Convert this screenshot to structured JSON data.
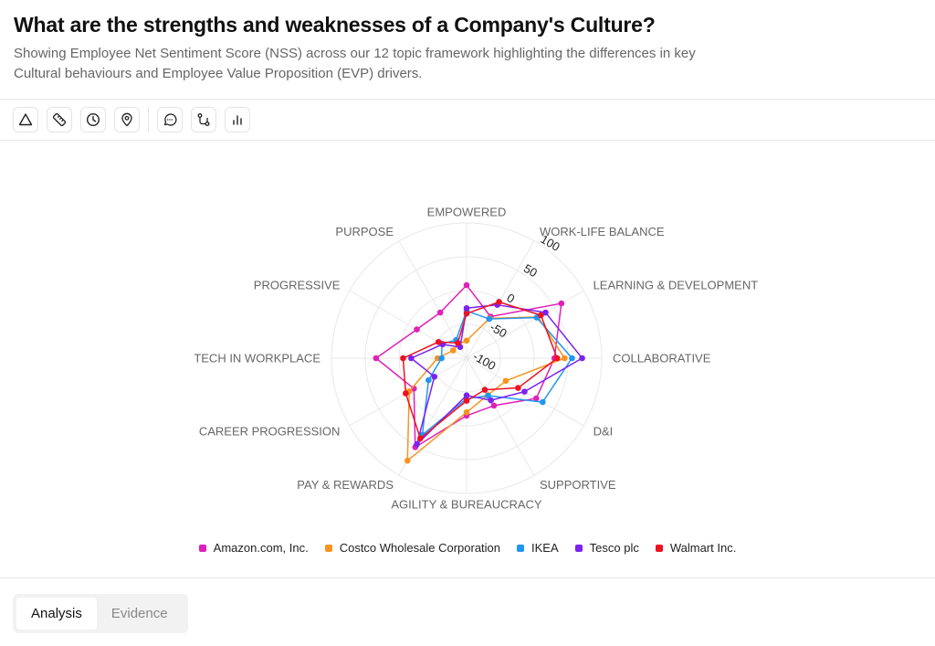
{
  "header": {
    "title": "What are the strengths and weaknesses of a Company's Culture?",
    "subtitle": "Showing Employee Net Sentiment Score (NSS) across our 12 topic framework highlighting the differences in key Cultural behaviours and Employee Value Proposition (EVP) drivers."
  },
  "toolbar": {
    "icons": [
      "triangle-icon",
      "ruler-icon",
      "clock-icon",
      "map-pin-icon",
      "message-icon",
      "git-pull-request-icon",
      "bar-chart-icon"
    ]
  },
  "chart_data": {
    "type": "radar",
    "categories": [
      "EMPOWERED",
      "WORK-LIFE BALANCE",
      "LEARNING & DEVELOPMENT",
      "COLLABORATIVE",
      "D&I",
      "SUPPORTIVE",
      "AGILITY & BUREAUCRACY",
      "PAY & REWARDS",
      "CAREER PROGRESSION",
      "TECH IN WORKPLACE",
      "PROGRESSIVE",
      "PURPOSE"
    ],
    "rlim": [
      -100,
      100
    ],
    "rticks": [
      "100",
      "50",
      "0",
      "-50",
      "-100"
    ],
    "grid": true,
    "legend": "bottom",
    "series": [
      {
        "name": "Amazon.com, Inc.",
        "color": "#e020b8",
        "values": [
          8,
          -29,
          62,
          30,
          19,
          -19,
          -15,
          52,
          -10,
          34,
          -15,
          -22
        ]
      },
      {
        "name": "Costco Wholesale Corporation",
        "color": "#f7941d",
        "values": [
          -74,
          -32,
          22,
          45,
          -33,
          -37,
          -20,
          75,
          -2,
          -57,
          -77,
          -76
        ]
      },
      {
        "name": "IKEA",
        "color": "#2196f3",
        "values": [
          -30,
          -33,
          20,
          56,
          30,
          -36,
          -40,
          31,
          -35,
          -63,
          -58,
          -69
        ]
      },
      {
        "name": "Tesco plc",
        "color": "#7b22f0",
        "values": [
          -26,
          -9,
          35,
          71,
          -1,
          -28,
          -45,
          47,
          -45,
          -18,
          -59,
          -81
        ]
      },
      {
        "name": "Walmart Inc.",
        "color": "#ee1122",
        "values": [
          -34,
          -4,
          27,
          34,
          -12,
          -46,
          -37,
          37,
          4,
          -6,
          -52,
          -74
        ]
      }
    ]
  },
  "tabs": [
    {
      "label": "Analysis",
      "active": true
    },
    {
      "label": "Evidence",
      "active": false
    }
  ]
}
